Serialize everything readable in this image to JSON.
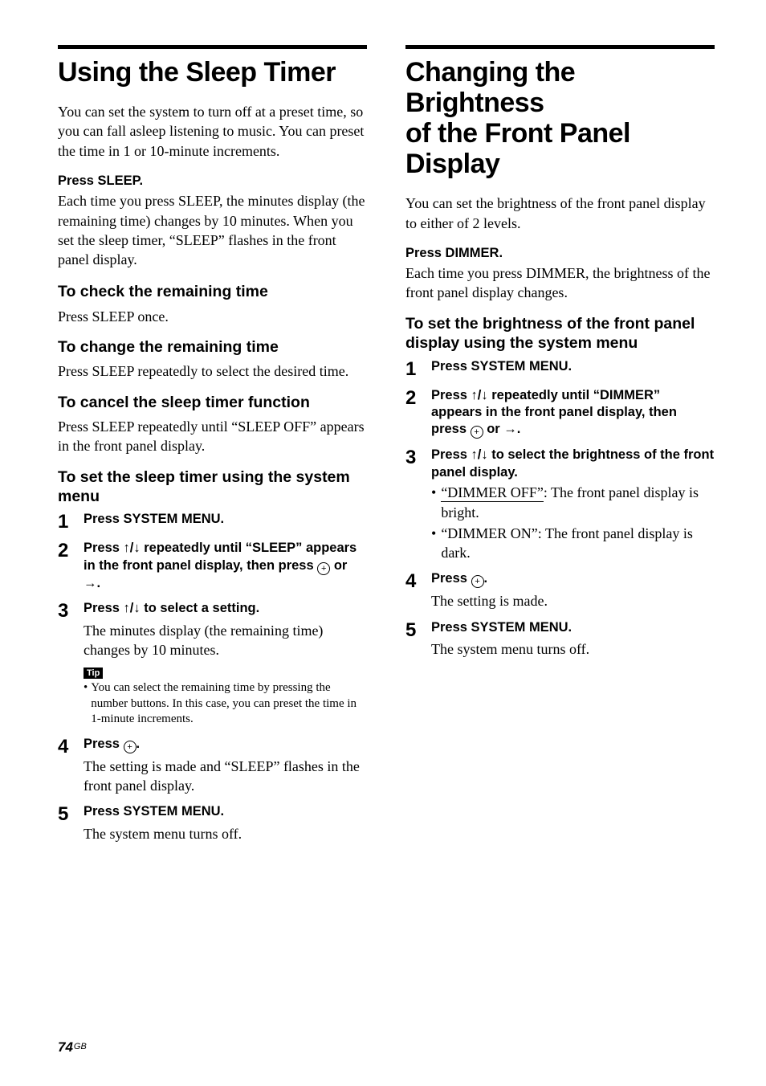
{
  "left": {
    "title": "Using the Sleep Timer",
    "intro": "You can set the system to turn off at a preset time, so you can fall asleep listening to music. You can preset the time in 1 or 10-minute increments.",
    "press_sleep_label": "Press SLEEP.",
    "press_sleep_body": "Each time you press SLEEP, the minutes display (the remaining time) changes by 10 minutes. When you set the sleep timer, “SLEEP” flashes in the front panel display.",
    "h2_check": "To check the remaining time",
    "check_body": "Press SLEEP once.",
    "h2_change": "To change the remaining time",
    "change_body": "Press SLEEP repeatedly to select the desired time.",
    "h2_cancel": "To cancel the sleep timer function",
    "cancel_body": "Press SLEEP repeatedly until “SLEEP  OFF” appears in the front panel display.",
    "h2_set": "To set the sleep timer using the system menu",
    "steps": {
      "s1": "Press SYSTEM MENU.",
      "s2_a": "Press ",
      "s2_arrows": "↑/↓",
      "s2_b": " repeatedly until “SLEEP” appears in the front panel display, then press ",
      "s2_c": " or ",
      "s2_right": "→",
      "s2_d": ".",
      "s3_a": "Press ",
      "s3_arrows": "↑/↓",
      "s3_b": " to select a setting.",
      "s3_sub": "The minutes display (the remaining time) changes by 10 minutes.",
      "tip_label": "Tip",
      "tip_body": "You can select the remaining time by pressing the number buttons. In this case, you can preset the time in 1-minute increments.",
      "s4_a": "Press ",
      "s4_b": ".",
      "s4_sub": "The setting is made and “SLEEP” flashes in the front panel display.",
      "s5": "Press SYSTEM MENU.",
      "s5_sub": "The system menu turns off."
    }
  },
  "right": {
    "title_l1": "Changing the Brightness",
    "title_l2": "of the Front Panel",
    "title_l3": "Display",
    "intro": "You can set the brightness of the front panel display to either of 2 levels.",
    "press_dimmer_label": "Press DIMMER.",
    "press_dimmer_body": "Each time you press DIMMER, the brightness of the front panel display changes.",
    "h2_set": "To set the brightness of the front panel display using the system menu",
    "steps": {
      "s1": "Press SYSTEM MENU.",
      "s2_a": "Press ",
      "s2_arrows": "↑/↓",
      "s2_b": " repeatedly until “DIMMER” appears in the front panel display, then press ",
      "s2_c": " or ",
      "s2_right": "→",
      "s2_d": ".",
      "s3_a": "Press ",
      "s3_arrows": "↑/↓",
      "s3_b": " to select the brightness of the front panel display.",
      "s3_opt1_u": "“DIMMER OFF”",
      "s3_opt1_rest": ": The front panel display is bright.",
      "s3_opt2": "“DIMMER ON”: The front panel display is dark.",
      "s4_a": "Press ",
      "s4_b": ".",
      "s4_sub": "The setting is made.",
      "s5": "Press SYSTEM MENU.",
      "s5_sub": "The system menu turns off."
    }
  },
  "footer": {
    "page": "74",
    "region": "GB"
  },
  "glyphs": {
    "enter": "+"
  }
}
